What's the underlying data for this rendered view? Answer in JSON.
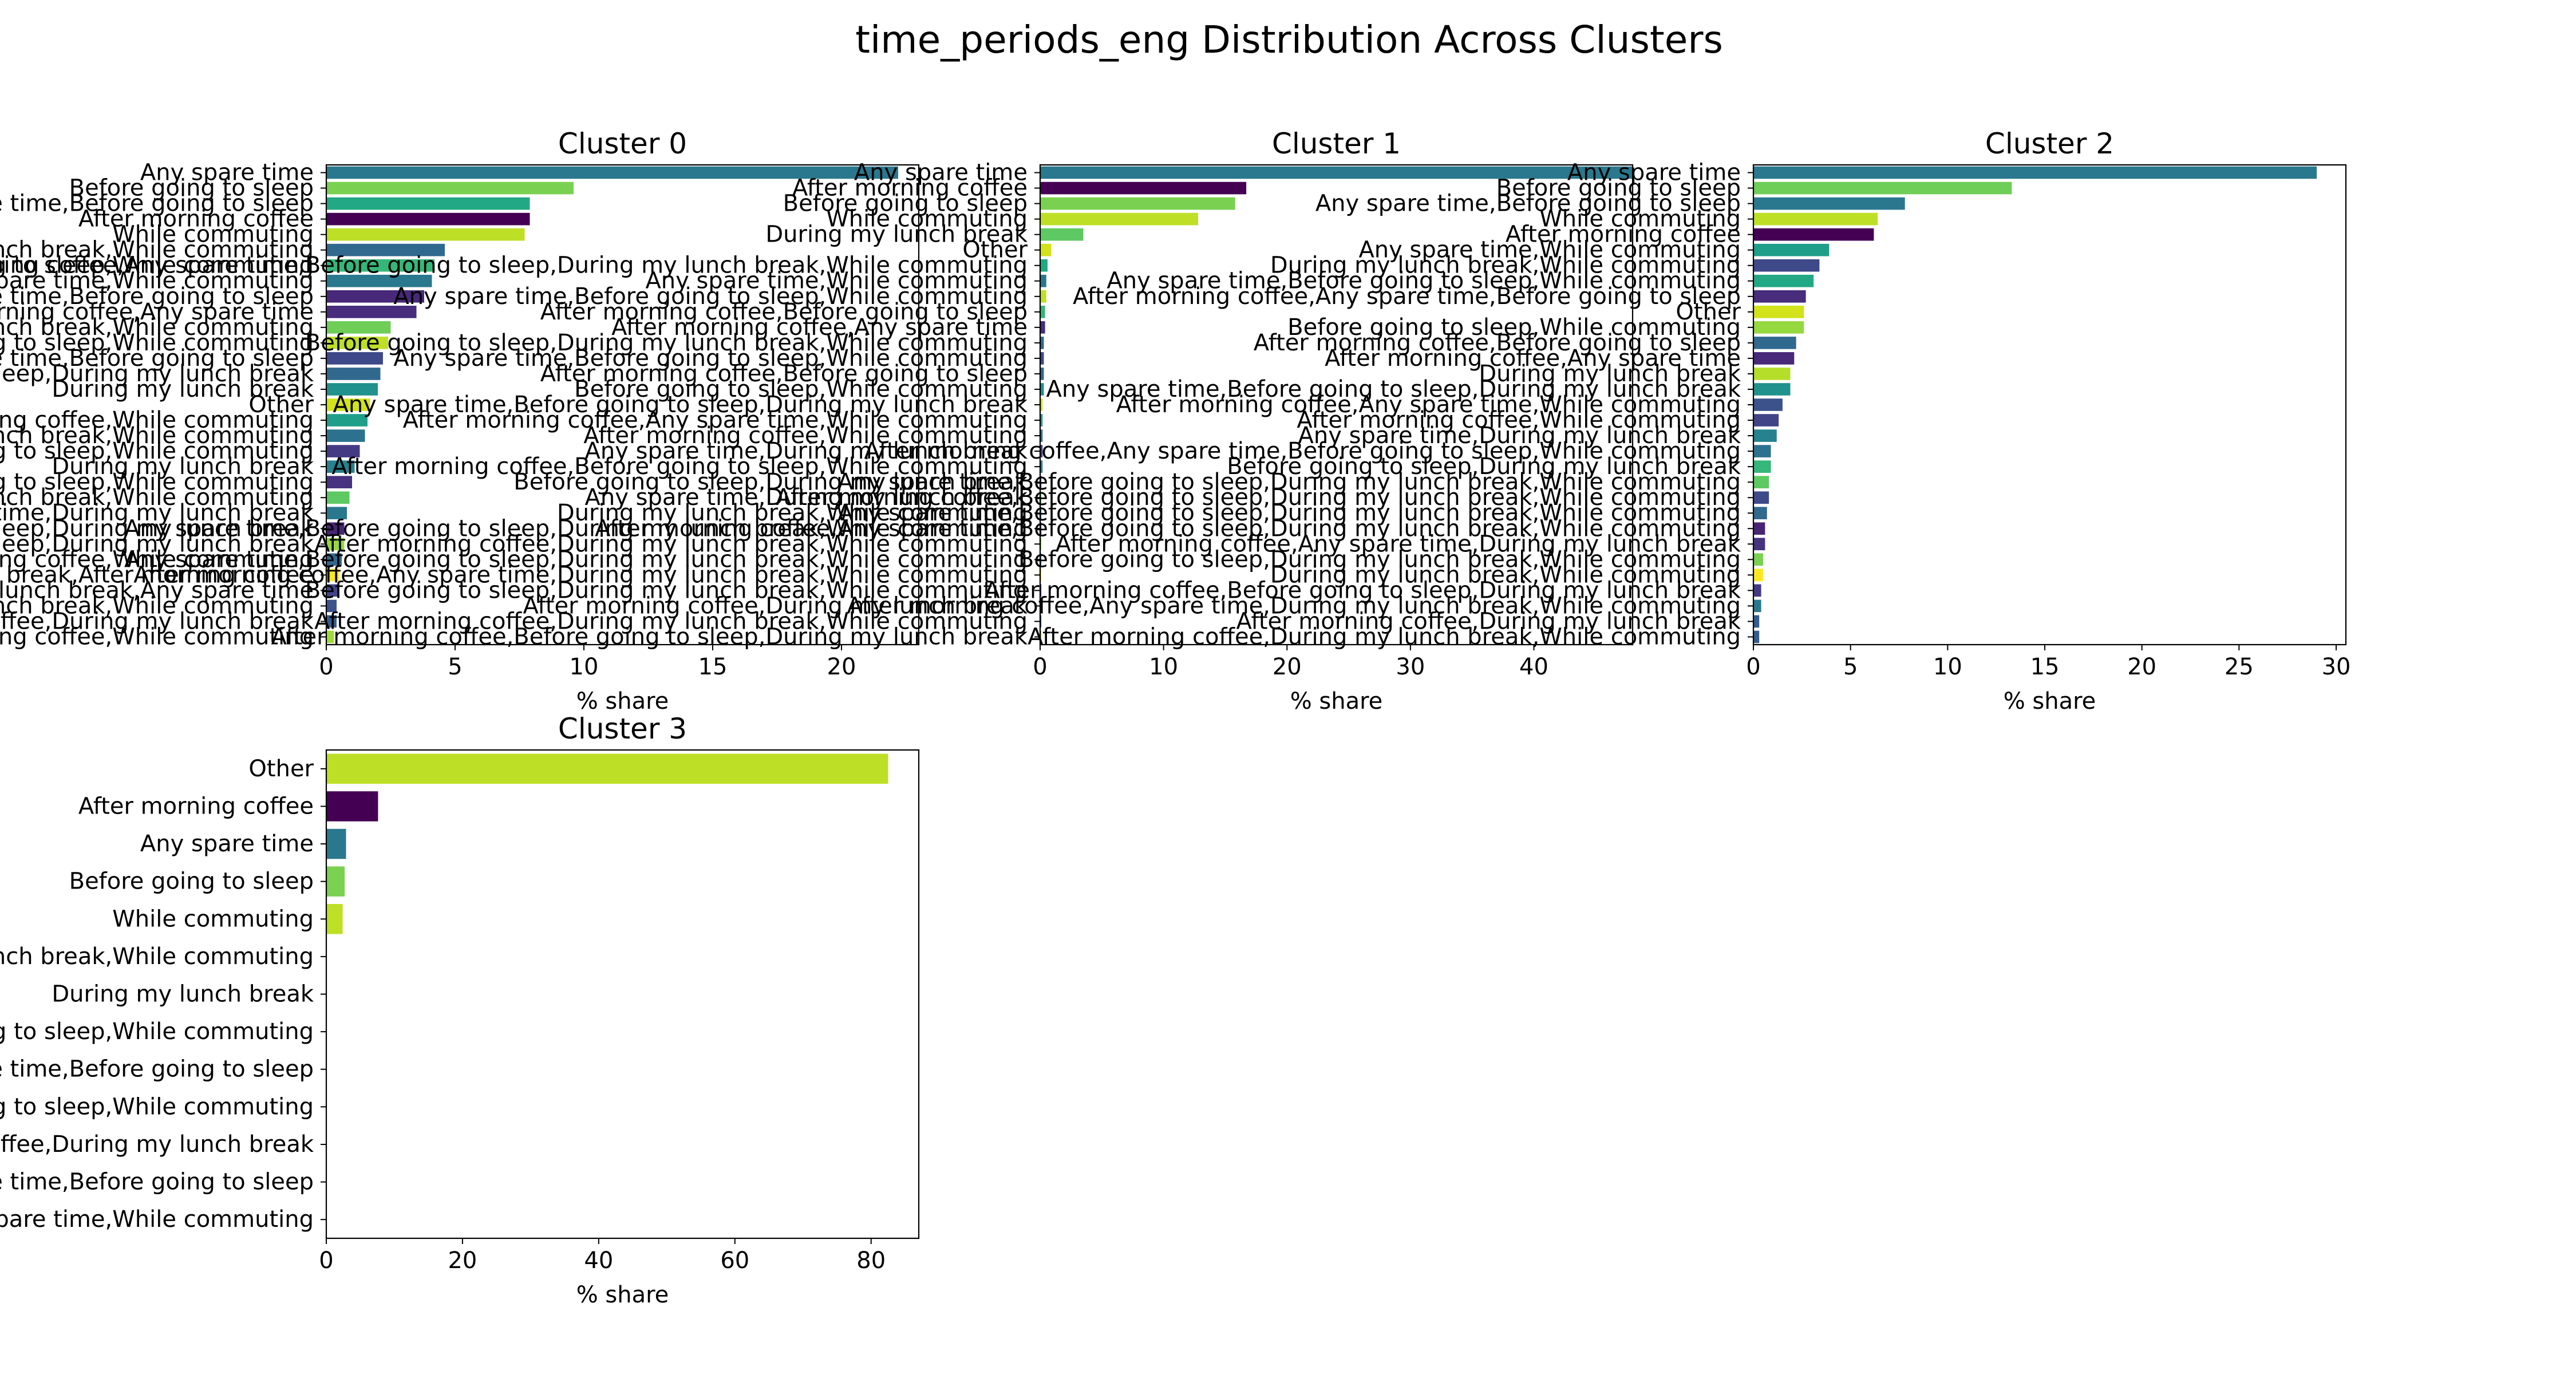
{
  "figure": {
    "suptitle": "time_periods_eng Distribution Across Clusters"
  },
  "chart_data": [
    {
      "type": "bar",
      "orientation": "horizontal",
      "title": "Cluster 0",
      "xlabel": "% share",
      "ylabel": "",
      "xlim": [
        0,
        23
      ],
      "xticks": [
        0,
        5,
        10,
        15,
        20
      ],
      "grid": false,
      "categories": [
        "Any spare time",
        "Before going to sleep",
        "Any spare time,Before going to sleep",
        "After morning coffee",
        "While commuting",
        "During my lunch break,While commuting",
        "Before going to sleep,While commuting",
        "Any spare time,While commuting",
        "Any spare time,Before going to sleep",
        "After morning coffee,Any spare time",
        "After morning coffee,Before going to sleep,During my lunch break,While commuting",
        "Any spare time,Before going to sleep,While commuting",
        "Any spare time,While commuting,After morning coffee,Any spare time,Before going to sleep",
        "Before going to sleep,During my lunch break",
        "During my lunch break",
        "Other",
        "After morning coffee,While commuting",
        "During my lunch break,While commuting",
        "Before going to sleep,While commuting",
        "During my lunch break",
        "Before going to sleep,While commuting",
        "During my lunch break,While commuting",
        "Any spare time,During my lunch break",
        "Before going to sleep,During my lunch break",
        "Before going to sleep,During my lunch break",
        "After morning coffee,While commuting",
        "Before going to sleep,During my lunch break,After morning coffee",
        "During my lunch break,Any spare time",
        "During my lunch break,While commuting",
        "After morning coffee,During my lunch break",
        "After morning coffee,While commuting"
      ],
      "values": [
        22.2,
        9.6,
        7.9,
        7.9,
        7.7,
        4.6,
        4.2,
        4.1,
        3.8,
        3.5,
        2.5,
        2.4,
        2.2,
        2.1,
        2.0,
        1.7,
        1.6,
        1.5,
        1.3,
        1.1,
        1.0,
        0.9,
        0.8,
        0.7,
        0.7,
        0.6,
        0.5,
        0.5,
        0.4,
        0.4,
        0.3
      ],
      "colors": [
        "#2a788e",
        "#7ad151",
        "#22a884",
        "#440154",
        "#bddf26",
        "#31688e",
        "#35b779",
        "#2a788e",
        "#482878",
        "#472d7b",
        "#6ece58",
        "#bddf26",
        "#3e4989",
        "#31688e",
        "#21918c",
        "#d2e21b",
        "#1f9e89",
        "#2c728e",
        "#443a83",
        "#26828e",
        "#46327e",
        "#5ec962",
        "#2a788e",
        "#482475",
        "#95d840",
        "#31688e",
        "#fde725",
        "#414487",
        "#3b528b",
        "#365c8d",
        "#a0da39"
      ]
    },
    {
      "type": "bar",
      "orientation": "horizontal",
      "title": "Cluster 1",
      "xlabel": "% share",
      "ylabel": "",
      "xlim": [
        0,
        48
      ],
      "xticks": [
        0,
        10,
        20,
        30,
        40
      ],
      "grid": false,
      "categories": [
        "Any spare time",
        "After morning coffee",
        "Before going to sleep",
        "While commuting",
        "During my lunch break",
        "Other",
        "After morning coffee,Any spare time,Before going to sleep,During my lunch break,While commuting",
        "Any spare time,While commuting",
        "Any spare time,Before going to sleep,While commuting",
        "After morning coffee,Before going to sleep",
        "After morning coffee,Any spare time",
        "Before going to sleep,During my lunch break,While commuting",
        "Any spare time,Before going to sleep,While commuting",
        "After morning coffee,Before going to sleep",
        "Before going to sleep,While commuting",
        "Any spare time,Before going to sleep,During my lunch break",
        "After morning coffee,Any spare time,While commuting",
        "After morning coffee,While commuting",
        "Any spare time,During my lunch break",
        "After morning coffee,Before going to sleep,While commuting",
        "Before going to sleep,During my lunch break",
        "Any spare time,During my lunch break",
        "During my lunch break,While commuting",
        "Any spare time,Before going to sleep,During my lunch break,While commuting",
        "After morning coffee,During my lunch break,While commuting",
        "Any spare time,Before going to sleep,During my lunch break,While commuting",
        "After morning coffee,Any spare time,During my lunch break,While commuting",
        "Before going to sleep,During my lunch break,While commuting",
        "After morning coffee,During my lunch break",
        "After morning coffee,During my lunch break,While commuting",
        "After morning coffee,Before going to sleep,During my lunch break"
      ],
      "values": [
        48.0,
        16.7,
        15.8,
        12.8,
        3.5,
        0.9,
        0.6,
        0.5,
        0.5,
        0.4,
        0.4,
        0.3,
        0.3,
        0.3,
        0.3,
        0.2,
        0.2,
        0.2,
        0.2,
        0.2,
        0.1,
        0.1,
        0.1,
        0.1,
        0.1,
        0.1,
        0.1,
        0.1,
        0.1,
        0.1,
        0.1
      ],
      "colors": [
        "#2a788e",
        "#440154",
        "#7ad151",
        "#bddf26",
        "#5ec962",
        "#d2e21b",
        "#22a884",
        "#2a788e",
        "#bddf26",
        "#35b779",
        "#472d7b",
        "#31688e",
        "#3e4989",
        "#31688e",
        "#21918c",
        "#d2e21b",
        "#1f9e89",
        "#2c728e",
        "#443a83",
        "#26828e",
        "#46327e",
        "#5ec962",
        "#2a788e",
        "#482475",
        "#95d840",
        "#31688e",
        "#fde725",
        "#414487",
        "#3b528b",
        "#365c8d",
        "#a0da39"
      ]
    },
    {
      "type": "bar",
      "orientation": "horizontal",
      "title": "Cluster 2",
      "xlabel": "% share",
      "ylabel": "",
      "xlim": [
        0,
        30.5
      ],
      "xticks": [
        0,
        5,
        10,
        15,
        20,
        25,
        30
      ],
      "grid": false,
      "categories": [
        "Any spare time",
        "Before going to sleep",
        "Any spare time,Before going to sleep",
        "While commuting",
        "After morning coffee",
        "Any spare time,While commuting",
        "During my lunch break,While commuting",
        "Any spare time,Before going to sleep,While commuting",
        "After morning coffee,Any spare time,Before going to sleep",
        "Other",
        "Before going to sleep,While commuting",
        "After morning coffee,Before going to sleep",
        "After morning coffee,Any spare time",
        "During my lunch break",
        "Any spare time,Before going to sleep,During my lunch break",
        "After morning coffee,Any spare time,While commuting",
        "After morning coffee,While commuting",
        "Any spare time,During my lunch break",
        "After morning coffee,Any spare time,Before going to sleep,While commuting",
        "Before going to sleep,During my lunch break",
        "Any spare time,Before going to sleep,During my lunch break,While commuting",
        "After morning coffee,Before going to sleep,During my lunch break,While commuting",
        "Any spare time,Before going to sleep,During my lunch break,While commuting",
        "After morning coffee,Any spare time,Before going to sleep,During my lunch break,While commuting",
        "After morning coffee,Any spare time,During my lunch break",
        "Before going to sleep,During my lunch break,While commuting",
        "During my lunch break,While commuting",
        "After morning coffee,Before going to sleep,During my lunch break",
        "After morning coffee,Any spare time,During my lunch break,While commuting",
        "After morning coffee,During my lunch break",
        "After morning coffee,During my lunch break,While commuting"
      ],
      "values": [
        29.0,
        13.3,
        7.8,
        6.4,
        6.2,
        3.9,
        3.4,
        3.1,
        2.7,
        2.6,
        2.6,
        2.2,
        2.1,
        1.9,
        1.9,
        1.5,
        1.3,
        1.2,
        0.9,
        0.9,
        0.8,
        0.8,
        0.7,
        0.6,
        0.6,
        0.5,
        0.5,
        0.4,
        0.4,
        0.3,
        0.3
      ],
      "colors": [
        "#2a788e",
        "#6ece58",
        "#2a788e",
        "#bddf26",
        "#440154",
        "#1f9e89",
        "#3e4989",
        "#22a884",
        "#472d7b",
        "#d2e21b",
        "#95d840",
        "#31688e",
        "#482878",
        "#b5de2b",
        "#21918c",
        "#3b528b",
        "#414487",
        "#26828e",
        "#2c728e",
        "#35b779",
        "#5ec962",
        "#3e4989",
        "#31688e",
        "#482475",
        "#46327e",
        "#7ad151",
        "#fde725",
        "#443a83",
        "#2a788e",
        "#365c8d",
        "#365c8d"
      ]
    },
    {
      "type": "bar",
      "orientation": "horizontal",
      "title": "Cluster 3",
      "xlabel": "% share",
      "ylabel": "",
      "xlim": [
        0,
        87
      ],
      "xticks": [
        0,
        20,
        40,
        60,
        80
      ],
      "grid": false,
      "categories": [
        "Other",
        "After morning coffee",
        "Any spare time",
        "Before going to sleep",
        "While commuting",
        "During my lunch break,While commuting",
        "During my lunch break",
        "Before going to sleep,While commuting",
        "Any spare time,Before going to sleep",
        "Before going to sleep,While commuting",
        "After morning coffee,During my lunch break",
        "Any spare time,Before going to sleep",
        "Any spare time,While commuting"
      ],
      "values": [
        82.5,
        7.6,
        2.9,
        2.7,
        2.4,
        0,
        0,
        0,
        0,
        0,
        0,
        0,
        0
      ],
      "colors": [
        "#bddf26",
        "#440154",
        "#2a788e",
        "#7ad151",
        "#bddf26",
        "#31688e",
        "#5ec962",
        "#35b779",
        "#22a884",
        "#2c728e",
        "#482878",
        "#3e4989",
        "#2a788e"
      ]
    }
  ]
}
